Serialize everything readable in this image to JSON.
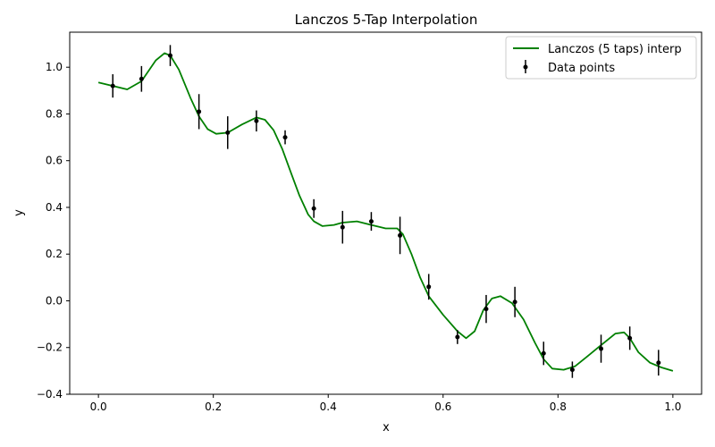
{
  "chart_data": {
    "type": "line",
    "title": "Lanczos 5-Tap Interpolation",
    "xlabel": "x",
    "ylabel": "y",
    "xlim": [
      -0.05,
      1.05
    ],
    "ylim": [
      -0.4,
      1.15
    ],
    "xticks": [
      0.0,
      0.2,
      0.4,
      0.6,
      0.8,
      1.0
    ],
    "xtick_labels": [
      "0.0",
      "0.2",
      "0.4",
      "0.6",
      "0.8",
      "1.0"
    ],
    "yticks": [
      -0.4,
      -0.2,
      0.0,
      0.2,
      0.4,
      0.6,
      0.8,
      1.0
    ],
    "ytick_labels": [
      "−0.4",
      "−0.2",
      "0.0",
      "0.2",
      "0.4",
      "0.6",
      "0.8",
      "1.0"
    ],
    "grid": false,
    "legend_position": "top-right",
    "series": [
      {
        "name": "Lanczos (5 taps) interp",
        "kind": "line",
        "color": "#008000",
        "x": [
          0.0,
          0.025,
          0.05,
          0.075,
          0.1,
          0.115,
          0.125,
          0.14,
          0.16,
          0.175,
          0.19,
          0.205,
          0.225,
          0.25,
          0.275,
          0.29,
          0.305,
          0.32,
          0.335,
          0.35,
          0.365,
          0.375,
          0.39,
          0.41,
          0.425,
          0.45,
          0.475,
          0.5,
          0.52,
          0.53,
          0.545,
          0.56,
          0.575,
          0.6,
          0.625,
          0.64,
          0.655,
          0.67,
          0.685,
          0.7,
          0.72,
          0.74,
          0.76,
          0.775,
          0.79,
          0.81,
          0.83,
          0.85,
          0.875,
          0.9,
          0.915,
          0.925,
          0.94,
          0.96,
          0.98,
          1.0
        ],
        "y": [
          0.935,
          0.92,
          0.905,
          0.94,
          1.03,
          1.06,
          1.05,
          0.99,
          0.87,
          0.79,
          0.735,
          0.715,
          0.72,
          0.755,
          0.785,
          0.775,
          0.73,
          0.65,
          0.55,
          0.45,
          0.37,
          0.34,
          0.32,
          0.325,
          0.335,
          0.34,
          0.325,
          0.31,
          0.31,
          0.285,
          0.2,
          0.1,
          0.02,
          -0.06,
          -0.13,
          -0.16,
          -0.13,
          -0.04,
          0.01,
          0.02,
          -0.01,
          -0.08,
          -0.18,
          -0.25,
          -0.29,
          -0.295,
          -0.28,
          -0.24,
          -0.19,
          -0.14,
          -0.135,
          -0.16,
          -0.22,
          -0.265,
          -0.285,
          -0.3
        ]
      },
      {
        "name": "Data points",
        "kind": "errorbar",
        "color": "#000000",
        "x": [
          0.025,
          0.075,
          0.125,
          0.175,
          0.225,
          0.275,
          0.325,
          0.375,
          0.425,
          0.475,
          0.525,
          0.575,
          0.625,
          0.675,
          0.725,
          0.775,
          0.825,
          0.875,
          0.925,
          0.975
        ],
        "y": [
          0.92,
          0.95,
          1.05,
          0.81,
          0.72,
          0.77,
          0.7,
          0.395,
          0.315,
          0.34,
          0.28,
          0.06,
          -0.155,
          -0.035,
          -0.005,
          -0.225,
          -0.295,
          -0.205,
          -0.16,
          -0.265
        ],
        "yerr": [
          0.05,
          0.055,
          0.045,
          0.075,
          0.07,
          0.045,
          0.03,
          0.04,
          0.07,
          0.04,
          0.08,
          0.055,
          0.03,
          0.06,
          0.065,
          0.05,
          0.035,
          0.06,
          0.05,
          0.055
        ]
      }
    ]
  }
}
